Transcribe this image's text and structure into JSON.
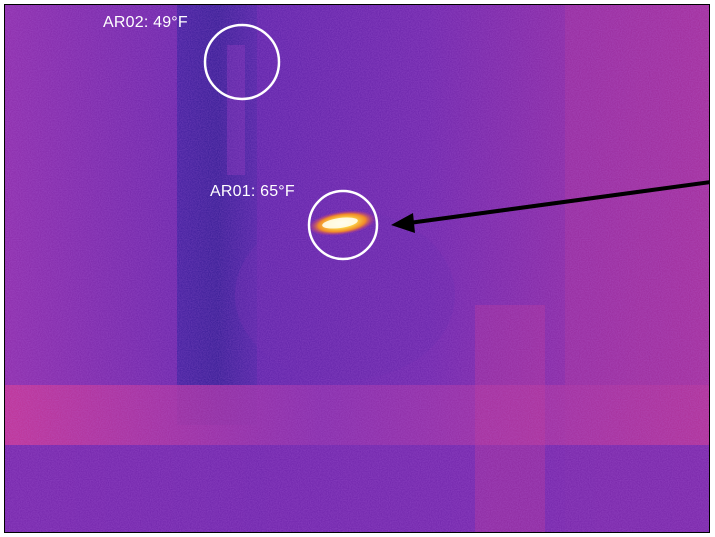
{
  "measurements": [
    {
      "id": "AR02",
      "label": "AR02: 49°F"
    },
    {
      "id": "AR01",
      "label": "AR01: 65°F"
    }
  ],
  "palette": {
    "cold": "#2c1a9c",
    "mid": "#7a1fb0",
    "warm": "#c42d8a",
    "hot": "#ffd23a",
    "hottest": "#fff7c0",
    "marker": "#ffffff",
    "arrow": "#000000"
  },
  "icons": [
    "measurement-circle",
    "pointer-arrow"
  ]
}
